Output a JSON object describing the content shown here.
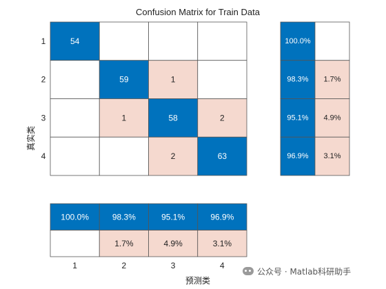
{
  "chart_data": {
    "type": "heatmap",
    "title": "Confusion Matrix for Train Data",
    "xlabel": "预测类",
    "ylabel": "真实类",
    "classes": [
      "1",
      "2",
      "3",
      "4"
    ],
    "matrix": [
      [
        54,
        0,
        0,
        0
      ],
      [
        0,
        59,
        1,
        0
      ],
      [
        0,
        1,
        58,
        2
      ],
      [
        0,
        0,
        2,
        63
      ]
    ],
    "row_summary": [
      {
        "correct": "100.0%",
        "incorrect": ""
      },
      {
        "correct": "98.3%",
        "incorrect": "1.7%"
      },
      {
        "correct": "95.1%",
        "incorrect": "4.9%"
      },
      {
        "correct": "96.9%",
        "incorrect": "3.1%"
      }
    ],
    "column_summary": [
      {
        "correct": "100.0%",
        "incorrect": ""
      },
      {
        "correct": "98.3%",
        "incorrect": "1.7%"
      },
      {
        "correct": "95.1%",
        "incorrect": "4.9%"
      },
      {
        "correct": "96.9%",
        "incorrect": "3.1%"
      }
    ],
    "colors": {
      "correct": "#0072BD",
      "incorrect": "#F5D9CF",
      "empty": "#FFFFFF",
      "border": "#555555",
      "text_on_correct": "#FFFFFF",
      "text_on_incorrect": "#222222"
    }
  },
  "watermark": {
    "text": "公众号 · Matlab科研助手",
    "icon": "wechat-icon"
  }
}
